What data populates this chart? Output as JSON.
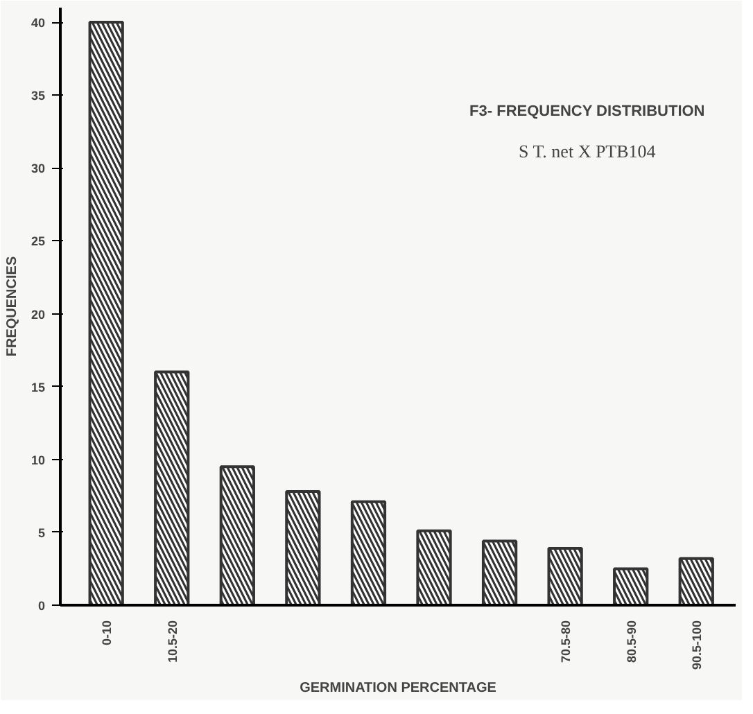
{
  "chart_data": {
    "type": "bar",
    "title": "F3- FREQUENCY DISTRIBUTION",
    "subtitle": "S T. net X PTB104",
    "xlabel": "GERMINATION PERCENTAGE",
    "ylabel": "FREQUENCIES",
    "categories": [
      "0-10",
      "10.5-20",
      null,
      null,
      null,
      null,
      null,
      "70.5-80",
      "80.5-90",
      "90.5-100"
    ],
    "values": [
      40,
      16,
      9.5,
      7.8,
      7.1,
      5.1,
      4.4,
      3.9,
      2.5,
      3.2
    ],
    "color": "#333333",
    "ylim": [
      0,
      41
    ],
    "yticks": [
      0,
      5,
      10,
      15,
      20,
      25,
      30,
      35,
      40
    ],
    "grid": false
  }
}
